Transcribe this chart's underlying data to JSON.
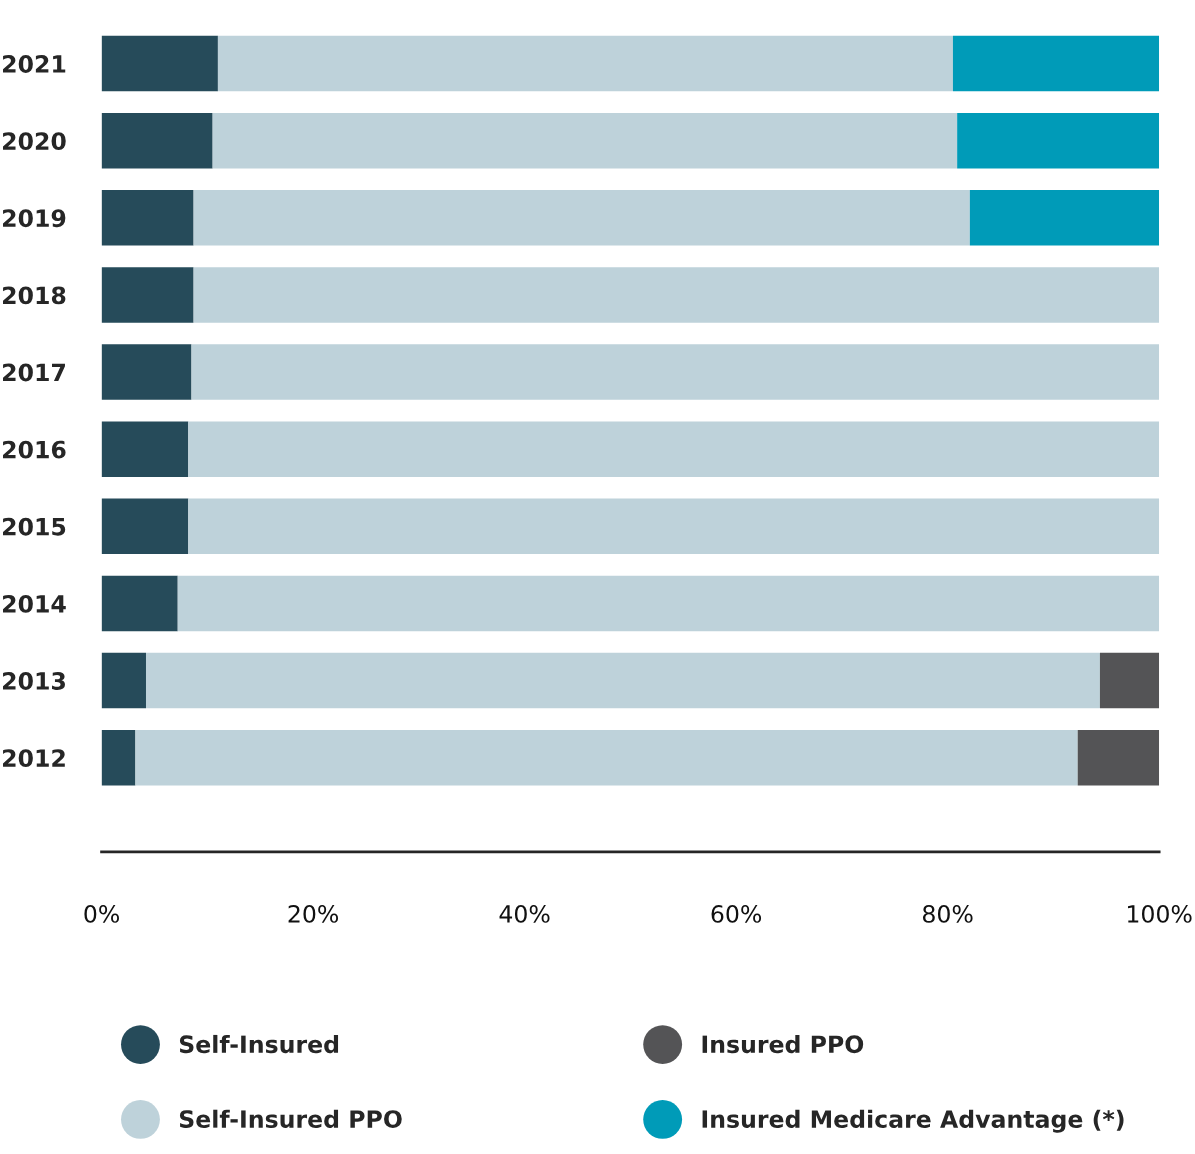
{
  "chart_data": {
    "type": "bar",
    "orientation": "horizontal",
    "stacked": true,
    "categories": [
      "2021",
      "2020",
      "2019",
      "2018",
      "2017",
      "2016",
      "2015",
      "2014",
      "2013",
      "2012"
    ],
    "series": [
      {
        "name": "Self-Insured",
        "color": "#264b5a",
        "values": [
          11.0,
          10.5,
          8.7,
          8.7,
          8.5,
          8.2,
          8.2,
          7.2,
          4.2,
          3.2
        ]
      },
      {
        "name": "Self-Insured PPO",
        "color": "#bed2da",
        "values": [
          69.5,
          70.4,
          73.4,
          91.3,
          91.5,
          91.8,
          91.8,
          92.8,
          90.2,
          89.1
        ]
      },
      {
        "name": "Insured PPO",
        "color": "#545456",
        "values": [
          null,
          null,
          null,
          null,
          null,
          null,
          null,
          null,
          5.6,
          7.7
        ]
      },
      {
        "name": "Insured Medicare Advantage (*)",
        "color": "#009bb8",
        "values": [
          19.5,
          19.1,
          17.9,
          null,
          null,
          null,
          null,
          null,
          null,
          null
        ]
      }
    ],
    "xlim": [
      0,
      100
    ],
    "xticks": [
      {
        "value": 0,
        "label": "0%"
      },
      {
        "value": 20,
        "label": "20%"
      },
      {
        "value": 40,
        "label": "40%"
      },
      {
        "value": 60,
        "label": "60%"
      },
      {
        "value": 80,
        "label": "80%"
      },
      {
        "value": 100,
        "label": "100%"
      }
    ],
    "grid": false,
    "legend": "bottom",
    "marker": "circle"
  }
}
